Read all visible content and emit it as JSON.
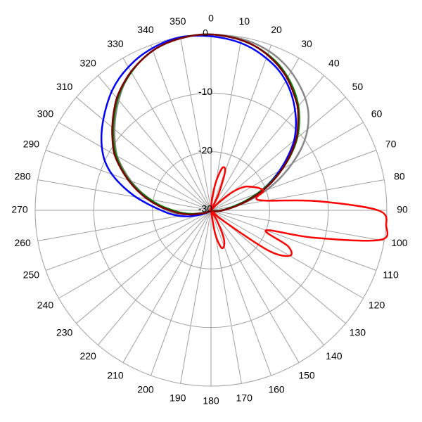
{
  "chart_data": {
    "type": "polar",
    "x": [
      0,
      5,
      10,
      15,
      20,
      25,
      30,
      35,
      40,
      45,
      50,
      55,
      60,
      65,
      70,
      75,
      80,
      85,
      90,
      95,
      100,
      105,
      110,
      115,
      120,
      125,
      130,
      135,
      140,
      145,
      150,
      155,
      160,
      165,
      170,
      175,
      180,
      185,
      190,
      195,
      200,
      205,
      210,
      215,
      220,
      225,
      230,
      235,
      240,
      245,
      250,
      255,
      260,
      265,
      270,
      275,
      280,
      285,
      290,
      295,
      300,
      305,
      310,
      315,
      320,
      325,
      330,
      335,
      340,
      345,
      350,
      355
    ],
    "rlim": [
      -30,
      0
    ],
    "rticks": [
      -30,
      -20,
      -10,
      0
    ],
    "thetaticks": [
      0,
      10,
      20,
      30,
      40,
      50,
      60,
      70,
      80,
      90,
      100,
      110,
      120,
      130,
      140,
      150,
      160,
      170,
      180,
      190,
      200,
      210,
      220,
      230,
      240,
      250,
      260,
      270,
      280,
      290,
      300,
      310,
      320,
      330,
      340,
      350
    ],
    "grid": true,
    "series": [
      {
        "color": "#888888",
        "values": [
          0,
          -0.1,
          -0.3,
          -0.6,
          -1.1,
          -1.8,
          -2.7,
          -3.8,
          -5,
          -6.5,
          -8.5,
          -11,
          -14,
          -17,
          -20,
          -23,
          -25.5,
          -27,
          -28,
          -28.7,
          -29.2,
          -29.5,
          -29.7,
          -29.8,
          -29.8,
          -29.8,
          -29.8,
          -29.8,
          -29.8,
          -29.8,
          -29.8,
          -29.8,
          -29.8,
          -29.8,
          -29.8,
          -29.8,
          -29.8,
          -29.8,
          -29.8,
          -29.8,
          -29.8,
          -29.8,
          -29.8,
          -29.8,
          -29.8,
          -29.8,
          -29.8,
          -29.8,
          -29.6,
          -29.2,
          -28.5,
          -27.5,
          -26,
          -24,
          -22.5,
          -21,
          -19.5,
          -17.5,
          -15.5,
          -13.5,
          -11.5,
          -10,
          -8.5,
          -7,
          -5.5,
          -4,
          -2.8,
          -1.8,
          -1,
          -0.5,
          -0.2,
          0
        ]
      },
      {
        "color": "#0000ff",
        "values": [
          -0.3,
          -0.6,
          -1,
          -1.6,
          -2.4,
          -3.3,
          -4.5,
          -6,
          -7.7,
          -9.5,
          -11.5,
          -14,
          -16.5,
          -19,
          -21.5,
          -24,
          -26,
          -27.3,
          -28.2,
          -28.8,
          -29.2,
          -29.5,
          -29.7,
          -29.8,
          -29.8,
          -29.8,
          -29.8,
          -29.8,
          -29.8,
          -29.8,
          -29.8,
          -29.8,
          -29.8,
          -29.8,
          -29.8,
          -29.8,
          -29.8,
          -29.8,
          -29.8,
          -29.8,
          -29.8,
          -29.8,
          -29.8,
          -29.8,
          -29.8,
          -29.8,
          -29.8,
          -29.6,
          -29.2,
          -28.5,
          -27.5,
          -26,
          -24.5,
          -23,
          -21.5,
          -19.5,
          -17,
          -14.5,
          -12,
          -10,
          -8.5,
          -7.2,
          -6,
          -4.8,
          -3.6,
          -2.6,
          -1.8,
          -1.1,
          -0.6,
          -0.2,
          0,
          -0.1
        ]
      },
      {
        "color": "#007f00",
        "values": [
          0,
          -0.2,
          -0.5,
          -1,
          -1.7,
          -2.6,
          -3.8,
          -5.2,
          -6.8,
          -8.7,
          -10.8,
          -13.3,
          -16,
          -18.8,
          -21.5,
          -24,
          -26,
          -27.3,
          -28.2,
          -28.8,
          -29.2,
          -29.5,
          -29.7,
          -29.8,
          -29.8,
          -29.8,
          -29.8,
          -29.8,
          -29.8,
          -29.8,
          -29.8,
          -29.8,
          -29.8,
          -29.8,
          -29.8,
          -29.8,
          -29.8,
          -29.8,
          -29.8,
          -29.8,
          -29.8,
          -29.8,
          -29.8,
          -29.8,
          -29.8,
          -29.8,
          -29.8,
          -29.8,
          -29.6,
          -29.2,
          -28.6,
          -27.8,
          -26.5,
          -25,
          -23.5,
          -21.5,
          -19.5,
          -17.3,
          -15.2,
          -13.2,
          -11.3,
          -9.7,
          -8.2,
          -6.7,
          -5.2,
          -3.9,
          -2.8,
          -1.8,
          -1,
          -0.5,
          -0.2,
          0
        ]
      },
      {
        "color": "#800000",
        "values": [
          0,
          -0.2,
          -0.5,
          -1,
          -1.8,
          -2.8,
          -4,
          -5.5,
          -7,
          -9,
          -11,
          -13.5,
          -16,
          -18.5,
          -21,
          -23.5,
          -25.5,
          -27,
          -28,
          -28.5,
          -29,
          -29.3,
          -29.5,
          -29.6,
          -29.7,
          -29.8,
          -29.8,
          -29.8,
          -29.8,
          -29.8,
          -29.8,
          -29.8,
          -29.8,
          -29.8,
          -29.8,
          -29.8,
          -29.8,
          -29.8,
          -29.8,
          -29.8,
          -29.8,
          -29.8,
          -29.8,
          -29.8,
          -29.8,
          -29.8,
          -29.8,
          -29.8,
          -29.5,
          -29,
          -28.5,
          -27.5,
          -26,
          -24.5,
          -23,
          -21,
          -19,
          -17,
          -15,
          -13,
          -11,
          -9.5,
          -8,
          -6.5,
          -5,
          -3.8,
          -2.7,
          -1.8,
          -1,
          -0.5,
          -0.2,
          0
        ]
      },
      {
        "color": "#ff0000",
        "values": [
          -30,
          -28,
          -25,
          -22.5,
          -23,
          -27,
          -30,
          -30,
          -30,
          -28,
          -25,
          -23,
          -22,
          -21,
          -20.5,
          -22,
          -20.5,
          -12,
          -1.5,
          0,
          -0.8,
          -12,
          -20,
          -15.5,
          -14.5,
          -18,
          -27,
          -30,
          -30,
          -30,
          -28,
          -25,
          -23.5,
          -23.5,
          -26,
          -30,
          -30,
          -30,
          -30,
          -30,
          -30,
          -30,
          -30,
          -30,
          -30,
          -30,
          -30,
          -30,
          -30,
          -30,
          -30,
          -30,
          -30,
          -30,
          -30,
          -30,
          -30,
          -30,
          -30,
          -30,
          -30,
          -30,
          -30,
          -30,
          -30,
          -30,
          -30,
          -30,
          -30,
          -30,
          -30,
          -30
        ]
      }
    ]
  }
}
